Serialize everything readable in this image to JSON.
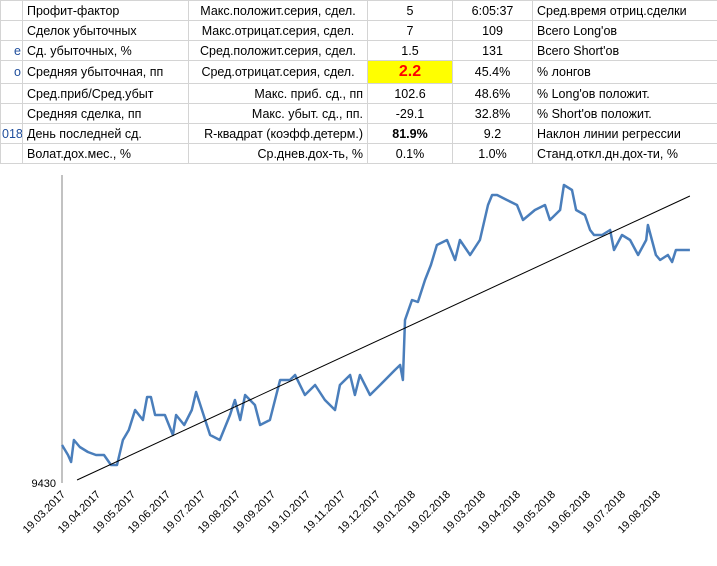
{
  "table": {
    "rows": [
      {
        "cells": [
          "Профит-фактор",
          "Макс.положит.серия, сдел.",
          "5",
          "6:05:37",
          "Сред.время отриц.сделки"
        ]
      },
      {
        "cells": [
          "Сделок убыточных",
          "Макс.отрицат.серия, сдел.",
          "7",
          "109",
          "Всего Long'ов"
        ]
      },
      {
        "edge": "е",
        "cells": [
          "Сд. убыточных, %",
          "Сред.положит.серия, сдел.",
          "1.5",
          "131",
          "Всего Short'ов"
        ]
      },
      {
        "edge": "о",
        "cells": [
          "Средняя убыточная, пп",
          "Сред.отрицат.серия, сдел.",
          "2.2",
          "45.4%",
          "% лонгов"
        ]
      },
      {
        "cells": [
          "Сред.приб/Сред.убыт",
          "Макс. приб. сд., пп",
          "102.6",
          "48.6%",
          "% Long'ов положит."
        ]
      },
      {
        "cells": [
          "Средняя сделка, пп",
          "Макс. убыт. сд., пп.",
          "-29.1",
          "32.8%",
          "% Short'ов положит."
        ]
      },
      {
        "edge": "018",
        "cells": [
          "День последней сд.",
          "R-квадрат (коэфф.детерм.)",
          "81.9%",
          "9.2",
          "Наклон линии регрессии"
        ]
      },
      {
        "cells": [
          "Волат.дох.мес., %",
          "Ср.днев.дох-ть, %",
          "0.1%",
          "1.0%",
          "Станд.откл.дн.дох-ти, %"
        ]
      }
    ]
  },
  "chart_data": {
    "type": "line",
    "xlim": [
      0,
      18.4
    ],
    "ylim": [
      9430,
      9738
    ],
    "yticks": [
      9430
    ],
    "xticks": [
      {
        "value": 0,
        "label": "19.03.2017"
      },
      {
        "value": 1,
        "label": "19.04.2017"
      },
      {
        "value": 2,
        "label": "19.05.2017"
      },
      {
        "value": 3,
        "label": "19.06.2017"
      },
      {
        "value": 4,
        "label": "19.07.2017"
      },
      {
        "value": 5,
        "label": "19.08.2017"
      },
      {
        "value": 6,
        "label": "19.09.2017"
      },
      {
        "value": 7,
        "label": "19.10.2017"
      },
      {
        "value": 8,
        "label": "19.11.2017"
      },
      {
        "value": 9,
        "label": "19.12.2017"
      },
      {
        "value": 10,
        "label": "19.01.2018"
      },
      {
        "value": 11,
        "label": "19.02.2018"
      },
      {
        "value": 12,
        "label": "19.03.2018"
      },
      {
        "value": 13,
        "label": "19.04.2018"
      },
      {
        "value": 14,
        "label": "19.05.2018"
      },
      {
        "value": 15,
        "label": "19.06.2018"
      },
      {
        "value": 16,
        "label": "19.07.2018"
      },
      {
        "value": 17,
        "label": "19.08.2018"
      }
    ],
    "series": [
      {
        "color": "#4a7ebb",
        "x": [
          0,
          0.17,
          0.26,
          0.34,
          0.51,
          0.74,
          0.97,
          1.2,
          1.4,
          1.57,
          1.74,
          1.91,
          2.09,
          2.31,
          2.43,
          2.54,
          2.66,
          2.94,
          3.17,
          3.26,
          3.49,
          3.71,
          3.83,
          4.09,
          4.23,
          4.51,
          4.8,
          4.94,
          5.09,
          5.23,
          5.51,
          5.66,
          5.94,
          6.23,
          6.51,
          6.66,
          6.94,
          7.23,
          7.51,
          7.8,
          7.94,
          8.23,
          8.37,
          8.51,
          8.8,
          9.09,
          9.51,
          9.66,
          9.74,
          9.8,
          10,
          10.17,
          10.37,
          10.54,
          10.71,
          11,
          11.23,
          11.37,
          11.66,
          11.94,
          12.17,
          12.29,
          12.43,
          12.71,
          13,
          13.17,
          13.51,
          13.8,
          13.94,
          14.23,
          14.34,
          14.57,
          14.69,
          14.94,
          15.09,
          15.2,
          15.43,
          15.66,
          15.77,
          16,
          16.23,
          16.46,
          16.69,
          16.74,
          16.97,
          17.09,
          17.31,
          17.43,
          17.54,
          17.94
        ],
        "values": [
          9468,
          9458,
          9451,
          9473,
          9466,
          9461,
          9458,
          9458,
          9448,
          9448,
          9473,
          9483,
          9503,
          9493,
          9516,
          9516,
          9498,
          9498,
          9478,
          9498,
          9488,
          9503,
          9521,
          9493,
          9478,
          9473,
          9498,
          9513,
          9493,
          9518,
          9508,
          9488,
          9493,
          9533,
          9533,
          9538,
          9518,
          9528,
          9513,
          9503,
          9528,
          9538,
          9518,
          9538,
          9518,
          9528,
          9543,
          9548,
          9533,
          9593,
          9613,
          9611,
          9633,
          9648,
          9668,
          9673,
          9653,
          9673,
          9658,
          9673,
          9708,
          9718,
          9718,
          9713,
          9708,
          9693,
          9703,
          9708,
          9693,
          9703,
          9728,
          9723,
          9703,
          9698,
          9683,
          9678,
          9678,
          9683,
          9663,
          9678,
          9673,
          9658,
          9673,
          9688,
          9658,
          9653,
          9658,
          9651,
          9663,
          9663
        ]
      }
    ],
    "trendline": {
      "color": "#000000",
      "x": [
        0.43,
        17.94
      ],
      "values": [
        9433,
        9717
      ]
    }
  }
}
